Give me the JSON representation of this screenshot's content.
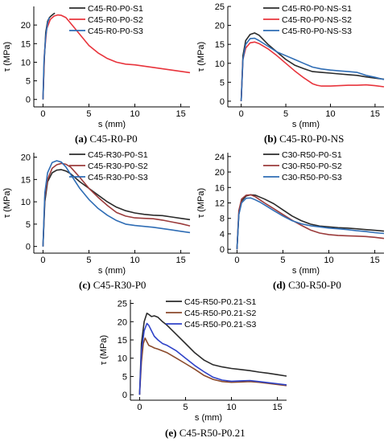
{
  "chart_data": [
    {
      "type": "line",
      "panel_label": "(a)",
      "caption": "C45-R0-P0",
      "xlabel": "s (mm)",
      "ylabel": "τ (MPa)",
      "xlim": [
        -1,
        16
      ],
      "ylim": [
        -2,
        25
      ],
      "xticks": [
        0,
        5,
        10,
        15
      ],
      "yticks": [
        0,
        5,
        10,
        15,
        20
      ],
      "legend_position": "top-right",
      "series": [
        {
          "name": "C45-R0-P0-S1",
          "color": "#2b2b2b",
          "x": [
            0,
            0.15,
            0.3,
            0.5,
            0.7,
            0.9,
            1.1,
            1.3
          ],
          "y": [
            0,
            11,
            18,
            21,
            22,
            22.5,
            22.9,
            23.2
          ]
        },
        {
          "name": "C45-R0-P0-S2",
          "color": "#e8343c",
          "x": [
            0,
            0.15,
            0.4,
            0.8,
            1.2,
            1.6,
            2.0,
            2.5,
            3.0,
            3.5,
            4.0,
            5.0,
            6.0,
            7.0,
            8.0,
            9.0,
            10.0,
            12.0,
            14.0,
            16.0
          ],
          "y": [
            0,
            12,
            19,
            21.5,
            22.4,
            22.7,
            22.6,
            22,
            20.5,
            19,
            17.5,
            14.5,
            12.5,
            11,
            10,
            9.5,
            9.3,
            8.6,
            7.9,
            7.2
          ]
        },
        {
          "name": "C45-R0-P0-S3",
          "color": "#2f6db5",
          "x": [
            0,
            0.1,
            0.3,
            0.5,
            0.7
          ],
          "y": [
            0,
            10,
            17,
            20.5,
            22
          ]
        }
      ]
    },
    {
      "type": "line",
      "panel_label": "(b)",
      "caption": "C45-R0-P0-NS",
      "xlabel": "s (mm)",
      "ylabel": "τ (MPa)",
      "xlim": [
        -1.5,
        16
      ],
      "ylim": [
        -1.5,
        25
      ],
      "xticks": [
        0,
        5,
        10,
        15
      ],
      "yticks": [
        0,
        5,
        10,
        15,
        20,
        25
      ],
      "legend_position": "top-right",
      "series": [
        {
          "name": "C45-R0-P0-NS-S1",
          "color": "#2b2b2b",
          "x": [
            0,
            0.2,
            0.5,
            1.0,
            1.5,
            2.0,
            3.0,
            4.0,
            5.0,
            6.0,
            7.0,
            8.0,
            9.0,
            10.0,
            11.0,
            12.0,
            13.0,
            14.0,
            15.0,
            16.0
          ],
          "y": [
            0,
            12,
            16,
            17.6,
            18,
            17.4,
            15,
            13,
            11,
            9.5,
            8.6,
            7.8,
            7.6,
            7.4,
            7.2,
            7.0,
            6.8,
            6.4,
            6.1,
            5.8
          ]
        },
        {
          "name": "C45-R0-P0-NS-S2",
          "color": "#e8343c",
          "x": [
            0,
            0.2,
            0.5,
            1.0,
            1.5,
            2.0,
            3.0,
            4.0,
            5.0,
            6.0,
            7.0,
            8.0,
            8.5,
            9.0,
            10.0,
            11.0,
            12.0,
            13.0,
            14.0,
            15.0,
            16.0
          ],
          "y": [
            0,
            11,
            14,
            15.4,
            15.6,
            15.2,
            13.8,
            12,
            10,
            8,
            6.2,
            4.6,
            4.2,
            4.0,
            4.0,
            4.1,
            4.2,
            4.2,
            4.3,
            4.1,
            3.8
          ]
        },
        {
          "name": "C45-R0-P0-NS-S3",
          "color": "#2f6db5",
          "x": [
            0,
            0.2,
            0.5,
            1.0,
            1.5,
            2.0,
            3.0,
            4.0,
            5.0,
            6.0,
            7.0,
            8.0,
            9.0,
            10.0,
            11.0,
            12.0,
            13.0,
            14.0,
            15.0,
            16.0
          ],
          "y": [
            0,
            11,
            15,
            16.5,
            16.6,
            16,
            14.5,
            13,
            12,
            11,
            10,
            9,
            8.5,
            8.2,
            8.0,
            7.8,
            7.6,
            6.8,
            6.3,
            5.7
          ]
        }
      ]
    },
    {
      "type": "line",
      "panel_label": "(c)",
      "caption": "C45-R30-P0",
      "xlabel": "s (mm)",
      "ylabel": "τ (MPa)",
      "xlim": [
        -1,
        16
      ],
      "ylim": [
        -1.5,
        21
      ],
      "xticks": [
        0,
        5,
        10,
        15
      ],
      "yticks": [
        0,
        5,
        10,
        15,
        20
      ],
      "legend_position": "top-right",
      "series": [
        {
          "name": "C45-R30-P0-S1",
          "color": "#2b2b2b",
          "x": [
            0,
            0.2,
            0.5,
            1.0,
            1.5,
            2.0,
            2.5,
            3.0,
            4.0,
            5.0,
            6.0,
            7.0,
            8.0,
            9.0,
            10.0,
            11.0,
            12.0,
            13.0,
            14.0,
            15.0,
            16.0
          ],
          "y": [
            0,
            10,
            14.5,
            16.5,
            17.1,
            17.2,
            16.9,
            16.3,
            14.5,
            13,
            11.5,
            10,
            8.8,
            8.0,
            7.5,
            7.2,
            7.0,
            6.9,
            6.6,
            6.3,
            6.0
          ]
        },
        {
          "name": "C45-R30-P0-S2",
          "color": "#9b3b3b",
          "x": [
            0,
            0.2,
            0.5,
            1.0,
            1.5,
            2.0,
            2.5,
            3.0,
            4.0,
            5.0,
            6.0,
            7.0,
            8.0,
            9.0,
            10.0,
            11.0,
            12.0,
            13.0,
            14.0,
            15.0,
            16.0
          ],
          "y": [
            0,
            11,
            15,
            17.5,
            18.3,
            18.6,
            18.4,
            17.8,
            15.5,
            13,
            11,
            9.2,
            7.6,
            6.8,
            6.4,
            6.3,
            6.2,
            5.9,
            5.5,
            5.1,
            4.6
          ]
        },
        {
          "name": "C45-R30-P0-S3",
          "color": "#2f6db5",
          "x": [
            0,
            0.2,
            0.5,
            1.0,
            1.5,
            2.0,
            2.5,
            3.0,
            4.0,
            5.0,
            6.0,
            7.0,
            8.0,
            9.0,
            10.0,
            11.0,
            12.0,
            13.0,
            14.0,
            15.0,
            16.0
          ],
          "y": [
            0,
            12,
            16.5,
            18.8,
            19.2,
            18.9,
            17.8,
            16.2,
            13,
            10.5,
            8.5,
            7,
            5.8,
            5.0,
            4.7,
            4.5,
            4.3,
            4.0,
            3.7,
            3.4,
            3.1
          ]
        }
      ]
    },
    {
      "type": "line",
      "panel_label": "(d)",
      "caption": "C30-R50-P0",
      "xlabel": "s (mm)",
      "ylabel": "τ (MPa)",
      "xlim": [
        -1,
        16
      ],
      "ylim": [
        -1,
        25
      ],
      "xticks": [
        0,
        5,
        10,
        15
      ],
      "yticks": [
        0,
        4,
        8,
        12,
        16,
        20,
        24
      ],
      "legend_position": "top-right",
      "series": [
        {
          "name": "C30-R50-P0-S1",
          "color": "#2b2b2b",
          "x": [
            0,
            0.2,
            0.5,
            1.0,
            1.5,
            2.0,
            2.5,
            3.0,
            4.0,
            5.0,
            6.0,
            7.0,
            8.0,
            9.0,
            10.0,
            11.0,
            12.0,
            13.0,
            14.0,
            15.0,
            16.0
          ],
          "y": [
            0,
            9,
            12.5,
            13.8,
            14.1,
            14,
            13.5,
            13,
            11.8,
            10.2,
            8.6,
            7.4,
            6.5,
            6.0,
            5.8,
            5.6,
            5.5,
            5.3,
            5.1,
            4.9,
            4.7
          ]
        },
        {
          "name": "C30-R50-P0-S2",
          "color": "#9b3b3b",
          "x": [
            0,
            0.2,
            0.5,
            1.0,
            1.5,
            2.0,
            2.5,
            3.0,
            4.0,
            5.0,
            6.0,
            7.0,
            8.0,
            9.0,
            10.0,
            11.0,
            12.0,
            13.0,
            14.0,
            15.0,
            16.0
          ],
          "y": [
            0,
            10,
            13,
            14,
            14.1,
            13.6,
            12.8,
            12,
            10.5,
            9,
            7.5,
            6.2,
            5,
            4.2,
            3.8,
            3.6,
            3.5,
            3.4,
            3.3,
            3.1,
            2.8
          ]
        },
        {
          "name": "C30-R50-P0-S3",
          "color": "#2f6db5",
          "x": [
            0,
            0.2,
            0.5,
            1.0,
            1.5,
            2.0,
            2.5,
            3.0,
            4.0,
            5.0,
            6.0,
            7.0,
            8.0,
            9.0,
            10.0,
            11.0,
            12.0,
            13.0,
            14.0,
            15.0,
            16.0
          ],
          "y": [
            0,
            9,
            12,
            13.2,
            13.3,
            12.8,
            12.2,
            11.5,
            10,
            8.6,
            7.4,
            6.6,
            6.1,
            5.8,
            5.5,
            5.3,
            5.1,
            4.8,
            4.6,
            4.3,
            4.1
          ]
        }
      ]
    },
    {
      "type": "line",
      "panel_label": "(e)",
      "caption": "C45-R50-P0.21",
      "xlabel": "s (mm)",
      "ylabel": "τ (MPa)",
      "xlim": [
        -1,
        16
      ],
      "ylim": [
        -1.5,
        26
      ],
      "xticks": [
        0,
        5,
        10,
        15
      ],
      "yticks": [
        0,
        5,
        10,
        15,
        20,
        25
      ],
      "legend_position": "top-right",
      "series": [
        {
          "name": "C45-R50-P0.21-S1",
          "color": "#2b2b2b",
          "x": [
            0,
            0.2,
            0.5,
            0.8,
            1.0,
            1.3,
            1.6,
            2.0,
            2.5,
            3.0,
            4.0,
            5.0,
            6.0,
            7.0,
            8.0,
            9.0,
            10.0,
            11.0,
            12.0,
            13.0,
            14.0,
            15.0,
            16.0
          ],
          "y": [
            0,
            14,
            20,
            22.3,
            22,
            21.4,
            21.6,
            21.2,
            20,
            19,
            16.5,
            14,
            11.5,
            9.5,
            8.2,
            7.6,
            7.2,
            6.9,
            6.6,
            6.2,
            5.9,
            5.5,
            5.1
          ]
        },
        {
          "name": "C45-R50-P0.21-S2",
          "color": "#8b4a2b",
          "x": [
            0,
            0.2,
            0.4,
            0.6,
            0.8,
            1.0,
            1.3,
            1.6,
            2.0,
            2.5,
            3.0,
            4.0,
            5.0,
            6.0,
            7.0,
            8.0,
            9.0,
            10.0,
            11.0,
            12.0,
            13.0,
            14.0,
            15.0,
            16.0
          ],
          "y": [
            0,
            9,
            14,
            15.5,
            14.5,
            13.5,
            13.2,
            12.8,
            12.5,
            12,
            11.5,
            10,
            8.5,
            7,
            5.3,
            4.2,
            3.6,
            3.4,
            3.5,
            3.6,
            3.4,
            3.1,
            2.8,
            2.5
          ]
        },
        {
          "name": "C45-R50-P0.21-S3",
          "color": "#2f43c8",
          "x": [
            0,
            0.2,
            0.5,
            0.8,
            1.0,
            1.3,
            1.6,
            2.0,
            2.5,
            3.0,
            4.0,
            5.0,
            6.0,
            7.0,
            8.0,
            9.0,
            10.0,
            11.0,
            12.0,
            13.0,
            14.0,
            15.0,
            16.0
          ],
          "y": [
            0,
            12,
            17.5,
            19.5,
            19.0,
            17.5,
            16,
            15,
            14,
            13.5,
            12,
            10,
            8,
            6.3,
            4.8,
            4.0,
            3.7,
            3.8,
            3.9,
            3.6,
            3.3,
            3.0,
            2.7
          ]
        }
      ]
    }
  ]
}
